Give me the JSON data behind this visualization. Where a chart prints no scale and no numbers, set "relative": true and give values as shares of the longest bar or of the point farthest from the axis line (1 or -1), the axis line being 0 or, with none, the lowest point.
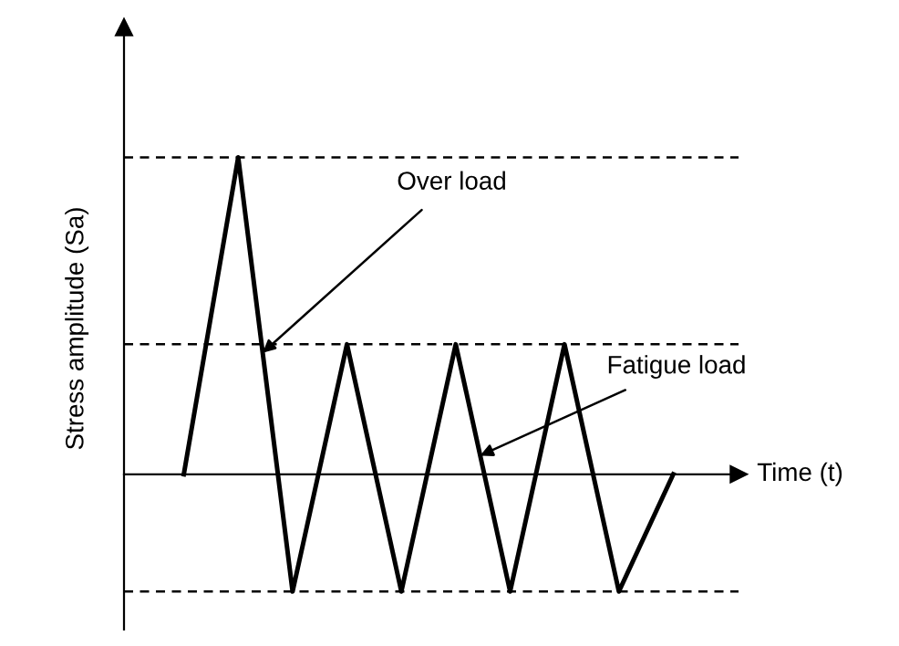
{
  "chart_data": {
    "type": "line",
    "relative": true,
    "xlabel": "Time (t)",
    "ylabel": "Stress amplitude (Sa)",
    "categories": [
      null,
      null,
      null,
      null,
      null,
      null,
      null,
      null,
      null,
      null
    ],
    "series": [
      {
        "color": "#000000",
        "values": [
          0,
          1,
          -0.37,
          0.41,
          -0.37,
          0.41,
          -0.37,
          0.41,
          -0.37,
          0
        ]
      }
    ],
    "ref_lines": [
      {
        "axis": "y",
        "value": 1,
        "line_style": "dashed",
        "color": "#000000"
      },
      {
        "axis": "y",
        "value": 0.41,
        "line_style": "dashed",
        "color": "#000000"
      },
      {
        "axis": "y",
        "value": -0.37,
        "line_style": "dashed",
        "color": "#000000"
      }
    ],
    "annotations": [
      "Over load",
      "Fatigue load"
    ],
    "marker": "none",
    "line_style": "solid"
  }
}
